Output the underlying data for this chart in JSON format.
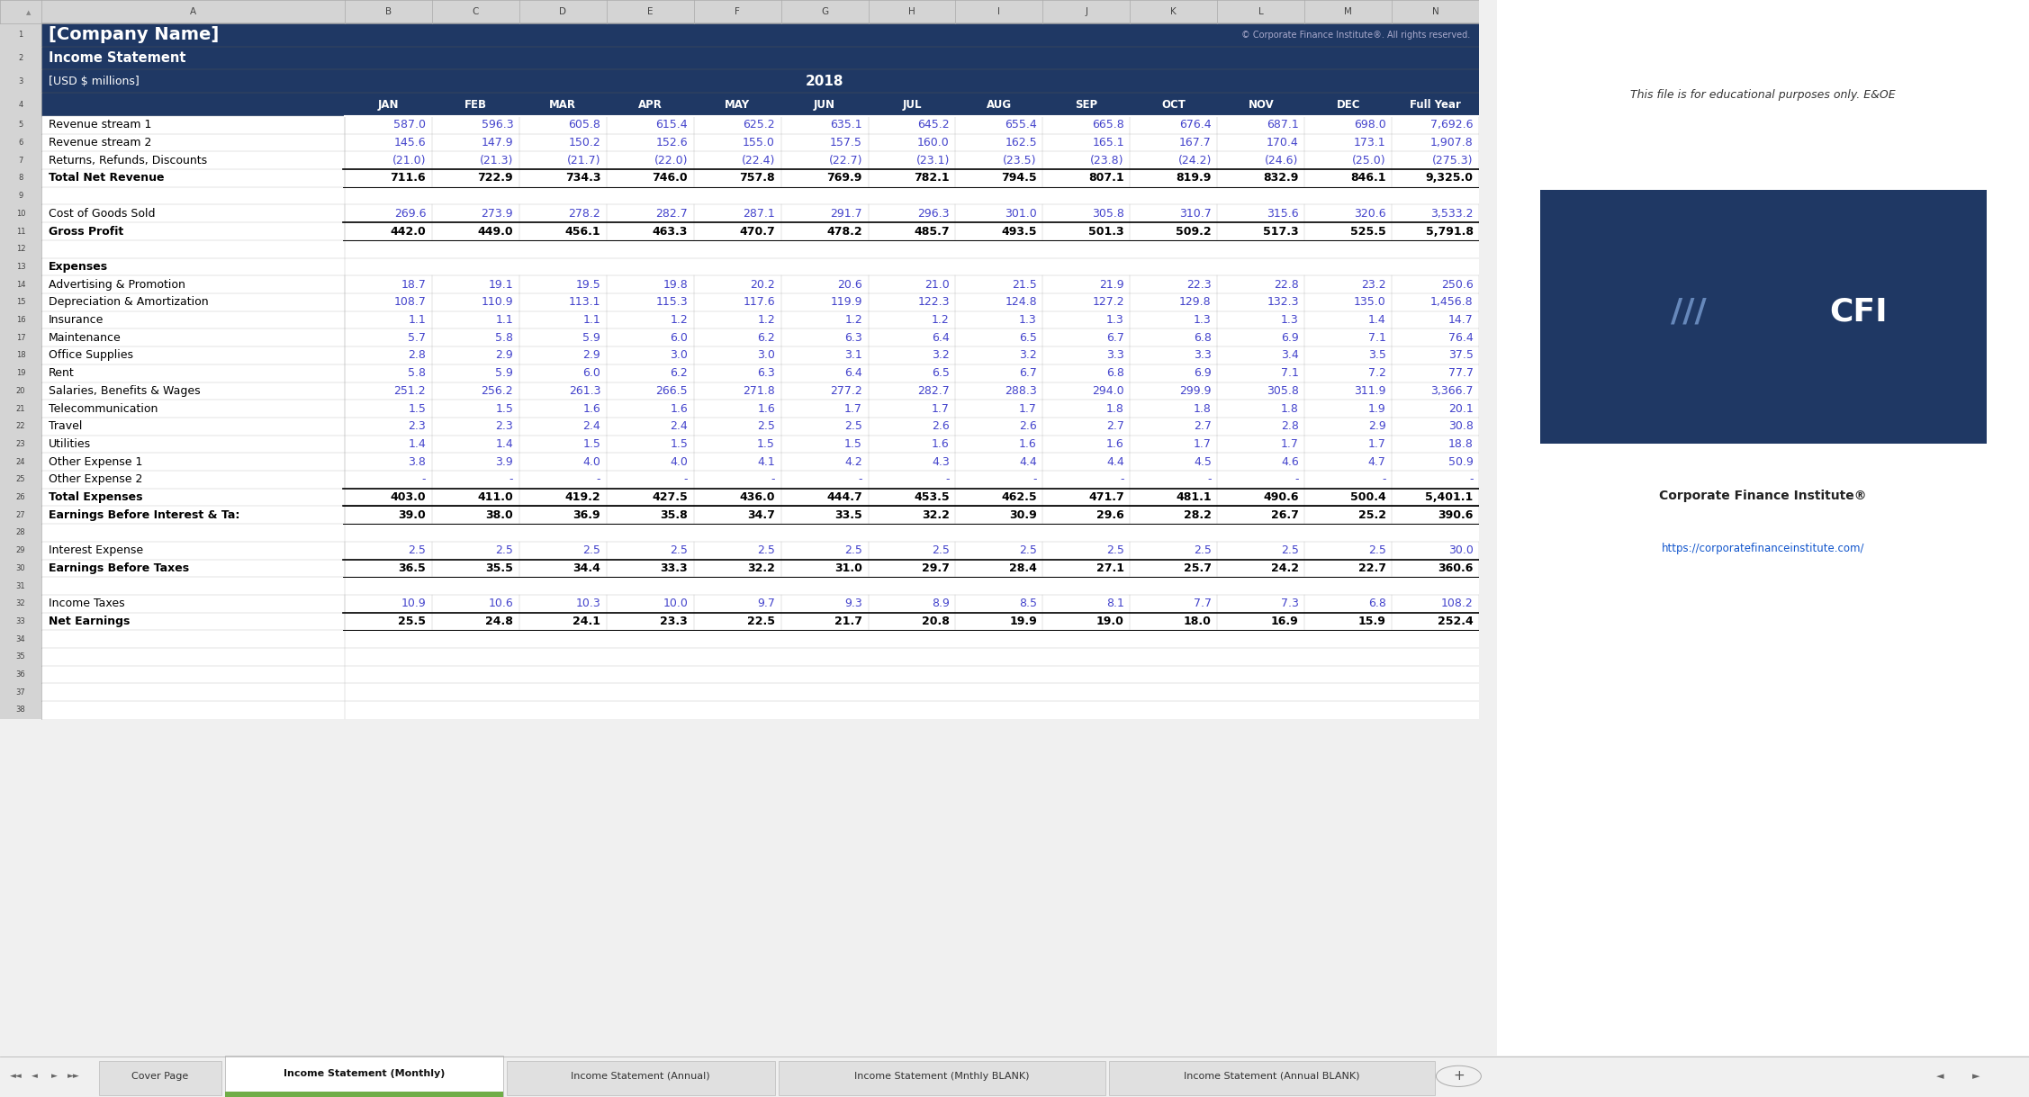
{
  "company_name": "[Company Name]",
  "subtitle": "Income Statement",
  "currency_note": "[USD $ millions]",
  "year": "2018",
  "copyright": "© Corporate Finance Institute®. All rights reserved.",
  "header_bg": "#1F3864",
  "header_text": "#FFFFFF",
  "data_blue": "#4444CC",
  "bold_black": "#000000",
  "grid_color": "#C0C0C0",
  "excel_col_bg": "#D4D4D4",
  "months": [
    "JAN",
    "FEB",
    "MAR",
    "APR",
    "MAY",
    "JUN",
    "JUL",
    "AUG",
    "SEP",
    "OCT",
    "NOV",
    "DEC",
    "Full Year"
  ],
  "rows": [
    {
      "row": 1,
      "label": "[Company Name]",
      "type": "company",
      "values": [],
      "bold": true
    },
    {
      "row": 2,
      "label": "Income Statement",
      "type": "subtitle",
      "values": [],
      "bold": true
    },
    {
      "row": 3,
      "label": "[USD $ millions]",
      "type": "currency",
      "values": [],
      "bold": false
    },
    {
      "row": 4,
      "label": "",
      "type": "header",
      "values": [
        "JAN",
        "FEB",
        "MAR",
        "APR",
        "MAY",
        "JUN",
        "JUL",
        "AUG",
        "SEP",
        "OCT",
        "NOV",
        "DEC",
        "Full Year"
      ],
      "bold": true
    },
    {
      "row": 5,
      "label": "Revenue stream 1",
      "type": "data",
      "values": [
        "587.0",
        "596.3",
        "605.8",
        "615.4",
        "625.2",
        "635.1",
        "645.2",
        "655.4",
        "665.8",
        "676.4",
        "687.1",
        "698.0",
        "7,692.6"
      ],
      "bold": false
    },
    {
      "row": 6,
      "label": "Revenue stream 2",
      "type": "data",
      "values": [
        "145.6",
        "147.9",
        "150.2",
        "152.6",
        "155.0",
        "157.5",
        "160.0",
        "162.5",
        "165.1",
        "167.7",
        "170.4",
        "173.1",
        "1,907.8"
      ],
      "bold": false
    },
    {
      "row": 7,
      "label": "Returns, Refunds, Discounts",
      "type": "data",
      "values": [
        "(21.0)",
        "(21.3)",
        "(21.7)",
        "(22.0)",
        "(22.4)",
        "(22.7)",
        "(23.1)",
        "(23.5)",
        "(23.8)",
        "(24.2)",
        "(24.6)",
        "(25.0)",
        "(275.3)"
      ],
      "bold": false
    },
    {
      "row": 8,
      "label": "Total Net Revenue",
      "type": "total",
      "values": [
        "711.6",
        "722.9",
        "734.3",
        "746.0",
        "757.8",
        "769.9",
        "782.1",
        "794.5",
        "807.1",
        "819.9",
        "832.9",
        "846.1",
        "9,325.0"
      ],
      "bold": true
    },
    {
      "row": 9,
      "label": "",
      "type": "blank",
      "values": [],
      "bold": false
    },
    {
      "row": 10,
      "label": "Cost of Goods Sold",
      "type": "data",
      "values": [
        "269.6",
        "273.9",
        "278.2",
        "282.7",
        "287.1",
        "291.7",
        "296.3",
        "301.0",
        "305.8",
        "310.7",
        "315.6",
        "320.6",
        "3,533.2"
      ],
      "bold": false
    },
    {
      "row": 11,
      "label": "Gross Profit",
      "type": "total",
      "values": [
        "442.0",
        "449.0",
        "456.1",
        "463.3",
        "470.7",
        "478.2",
        "485.7",
        "493.5",
        "501.3",
        "509.2",
        "517.3",
        "525.5",
        "5,791.8"
      ],
      "bold": true
    },
    {
      "row": 12,
      "label": "",
      "type": "blank",
      "values": [],
      "bold": false
    },
    {
      "row": 13,
      "label": "Expenses",
      "type": "section",
      "values": [],
      "bold": true
    },
    {
      "row": 14,
      "label": "Advertising & Promotion",
      "type": "data",
      "values": [
        "18.7",
        "19.1",
        "19.5",
        "19.8",
        "20.2",
        "20.6",
        "21.0",
        "21.5",
        "21.9",
        "22.3",
        "22.8",
        "23.2",
        "250.6"
      ],
      "bold": false
    },
    {
      "row": 15,
      "label": "Depreciation & Amortization",
      "type": "data",
      "values": [
        "108.7",
        "110.9",
        "113.1",
        "115.3",
        "117.6",
        "119.9",
        "122.3",
        "124.8",
        "127.2",
        "129.8",
        "132.3",
        "135.0",
        "1,456.8"
      ],
      "bold": false
    },
    {
      "row": 16,
      "label": "Insurance",
      "type": "data",
      "values": [
        "1.1",
        "1.1",
        "1.1",
        "1.2",
        "1.2",
        "1.2",
        "1.2",
        "1.3",
        "1.3",
        "1.3",
        "1.3",
        "1.4",
        "14.7"
      ],
      "bold": false
    },
    {
      "row": 17,
      "label": "Maintenance",
      "type": "data",
      "values": [
        "5.7",
        "5.8",
        "5.9",
        "6.0",
        "6.2",
        "6.3",
        "6.4",
        "6.5",
        "6.7",
        "6.8",
        "6.9",
        "7.1",
        "76.4"
      ],
      "bold": false
    },
    {
      "row": 18,
      "label": "Office Supplies",
      "type": "data",
      "values": [
        "2.8",
        "2.9",
        "2.9",
        "3.0",
        "3.0",
        "3.1",
        "3.2",
        "3.2",
        "3.3",
        "3.3",
        "3.4",
        "3.5",
        "37.5"
      ],
      "bold": false
    },
    {
      "row": 19,
      "label": "Rent",
      "type": "data",
      "values": [
        "5.8",
        "5.9",
        "6.0",
        "6.2",
        "6.3",
        "6.4",
        "6.5",
        "6.7",
        "6.8",
        "6.9",
        "7.1",
        "7.2",
        "77.7"
      ],
      "bold": false
    },
    {
      "row": 20,
      "label": "Salaries, Benefits & Wages",
      "type": "data",
      "values": [
        "251.2",
        "256.2",
        "261.3",
        "266.5",
        "271.8",
        "277.2",
        "282.7",
        "288.3",
        "294.0",
        "299.9",
        "305.8",
        "311.9",
        "3,366.7"
      ],
      "bold": false
    },
    {
      "row": 21,
      "label": "Telecommunication",
      "type": "data",
      "values": [
        "1.5",
        "1.5",
        "1.6",
        "1.6",
        "1.6",
        "1.7",
        "1.7",
        "1.7",
        "1.8",
        "1.8",
        "1.8",
        "1.9",
        "20.1"
      ],
      "bold": false
    },
    {
      "row": 22,
      "label": "Travel",
      "type": "data",
      "values": [
        "2.3",
        "2.3",
        "2.4",
        "2.4",
        "2.5",
        "2.5",
        "2.6",
        "2.6",
        "2.7",
        "2.7",
        "2.8",
        "2.9",
        "30.8"
      ],
      "bold": false
    },
    {
      "row": 23,
      "label": "Utilities",
      "type": "data",
      "values": [
        "1.4",
        "1.4",
        "1.5",
        "1.5",
        "1.5",
        "1.5",
        "1.6",
        "1.6",
        "1.6",
        "1.7",
        "1.7",
        "1.7",
        "18.8"
      ],
      "bold": false
    },
    {
      "row": 24,
      "label": "Other Expense 1",
      "type": "data",
      "values": [
        "3.8",
        "3.9",
        "4.0",
        "4.0",
        "4.1",
        "4.2",
        "4.3",
        "4.4",
        "4.4",
        "4.5",
        "4.6",
        "4.7",
        "50.9"
      ],
      "bold": false
    },
    {
      "row": 25,
      "label": "Other Expense 2",
      "type": "data",
      "values": [
        "-",
        "-",
        "-",
        "-",
        "-",
        "-",
        "-",
        "-",
        "-",
        "-",
        "-",
        "-",
        "-"
      ],
      "bold": false
    },
    {
      "row": 26,
      "label": "Total Expenses",
      "type": "total",
      "values": [
        "403.0",
        "411.0",
        "419.2",
        "427.5",
        "436.0",
        "444.7",
        "453.5",
        "462.5",
        "471.7",
        "481.1",
        "490.6",
        "500.4",
        "5,401.1"
      ],
      "bold": true
    },
    {
      "row": 27,
      "label": "Earnings Before Interest & Ta:",
      "type": "total",
      "values": [
        "39.0",
        "38.0",
        "36.9",
        "35.8",
        "34.7",
        "33.5",
        "32.2",
        "30.9",
        "29.6",
        "28.2",
        "26.7",
        "25.2",
        "390.6"
      ],
      "bold": true
    },
    {
      "row": 28,
      "label": "",
      "type": "blank",
      "values": [],
      "bold": false
    },
    {
      "row": 29,
      "label": "Interest Expense",
      "type": "data",
      "values": [
        "2.5",
        "2.5",
        "2.5",
        "2.5",
        "2.5",
        "2.5",
        "2.5",
        "2.5",
        "2.5",
        "2.5",
        "2.5",
        "2.5",
        "30.0"
      ],
      "bold": false
    },
    {
      "row": 30,
      "label": "Earnings Before Taxes",
      "type": "total",
      "values": [
        "36.5",
        "35.5",
        "34.4",
        "33.3",
        "32.2",
        "31.0",
        "29.7",
        "28.4",
        "27.1",
        "25.7",
        "24.2",
        "22.7",
        "360.6"
      ],
      "bold": true
    },
    {
      "row": 31,
      "label": "",
      "type": "blank",
      "values": [],
      "bold": false
    },
    {
      "row": 32,
      "label": "Income Taxes",
      "type": "data",
      "values": [
        "10.9",
        "10.6",
        "10.3",
        "10.0",
        "9.7",
        "9.3",
        "8.9",
        "8.5",
        "8.1",
        "7.7",
        "7.3",
        "6.8",
        "108.2"
      ],
      "bold": false
    },
    {
      "row": 33,
      "label": "Net Earnings",
      "type": "total",
      "values": [
        "25.5",
        "24.8",
        "24.1",
        "23.3",
        "22.5",
        "21.7",
        "20.8",
        "19.9",
        "19.0",
        "18.0",
        "16.9",
        "15.9",
        "252.4"
      ],
      "bold": true
    },
    {
      "row": 34,
      "label": "",
      "type": "blank",
      "values": [],
      "bold": false
    },
    {
      "row": 35,
      "label": "",
      "type": "blank",
      "values": [],
      "bold": false
    },
    {
      "row": 36,
      "label": "",
      "type": "blank",
      "values": [],
      "bold": false
    },
    {
      "row": 37,
      "label": "",
      "type": "blank",
      "values": [],
      "bold": false
    },
    {
      "row": 38,
      "label": "",
      "type": "blank",
      "values": [],
      "bold": false
    }
  ],
  "tabs": [
    "Cover Page",
    "Income Statement (Monthly)",
    "Income Statement (Annual)",
    "Income Statement (Mnthly BLANK)",
    "Income Statement (Annual BLANK)"
  ],
  "active_tab": 1,
  "right_panel_text": "This file is for educational purposes only. E&OE",
  "right_panel_link": "https://corporatefinanceinstitute.com/",
  "right_panel_company": "Corporate Finance Institute®"
}
